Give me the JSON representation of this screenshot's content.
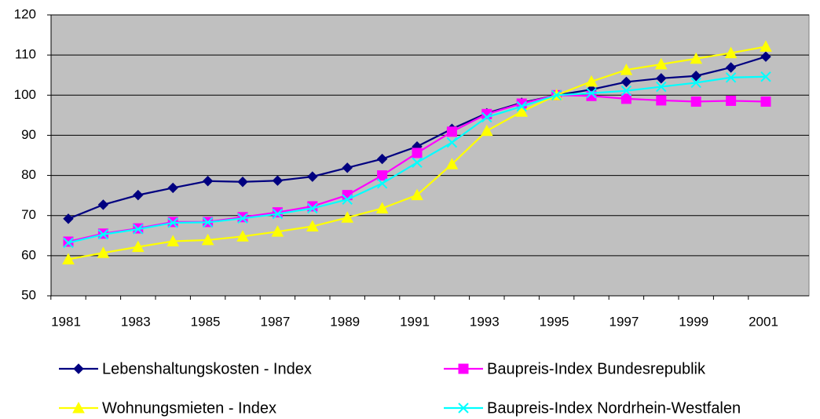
{
  "chart_data": {
    "type": "line",
    "categories": [
      "1981",
      null,
      "1983",
      null,
      "1985",
      null,
      "1987",
      null,
      "1989",
      null,
      "1991",
      null,
      "1993",
      null,
      "1995",
      null,
      "1997",
      null,
      "1999",
      null,
      "2001"
    ],
    "series": [
      {
        "name": "Lebenshaltungskosten - Index",
        "color": "#000080",
        "marker": "diamond",
        "values": [
          69.2,
          72.7,
          75.1,
          76.9,
          78.6,
          78.4,
          78.7,
          79.7,
          81.9,
          84.1,
          87.2,
          91.6,
          95.5,
          98.1,
          100,
          101.4,
          103.3,
          104.2,
          104.8,
          106.9,
          109.6
        ]
      },
      {
        "name": "Baupreis-Index Bundesrepublik",
        "color": "#ff00ff",
        "marker": "square",
        "values": [
          63.5,
          65.5,
          66.8,
          68.4,
          68.4,
          69.6,
          70.8,
          72.3,
          75.1,
          80,
          85.6,
          90.9,
          95.3,
          97.9,
          100,
          99.8,
          99.1,
          98.7,
          98.4,
          98.6,
          98.4
        ]
      },
      {
        "name": "Wohnungsmieten - Index",
        "color": "#ffff00",
        "marker": "triangle",
        "values": [
          59.1,
          60.7,
          62.2,
          63.6,
          63.9,
          64.8,
          66,
          67.3,
          69.5,
          71.8,
          75.1,
          82.8,
          91.1,
          95.9,
          100,
          103.4,
          106.3,
          107.7,
          109.1,
          110.5,
          112.1
        ]
      },
      {
        "name": "Baupreis-Index Nordrhein-Westfalen",
        "color": "#00ffff",
        "marker": "x",
        "values": [
          63.2,
          65.3,
          66.6,
          68.2,
          68.3,
          69.3,
          70.4,
          71.8,
          74,
          78,
          83.2,
          88.2,
          94.5,
          97.2,
          100,
          100.5,
          101.1,
          102.1,
          103.1,
          104.4,
          104.6
        ]
      }
    ],
    "ylim": [
      50,
      120
    ],
    "yticks": [
      50,
      60,
      70,
      80,
      90,
      100,
      110,
      120
    ],
    "grid": true,
    "legend": "bottom"
  }
}
